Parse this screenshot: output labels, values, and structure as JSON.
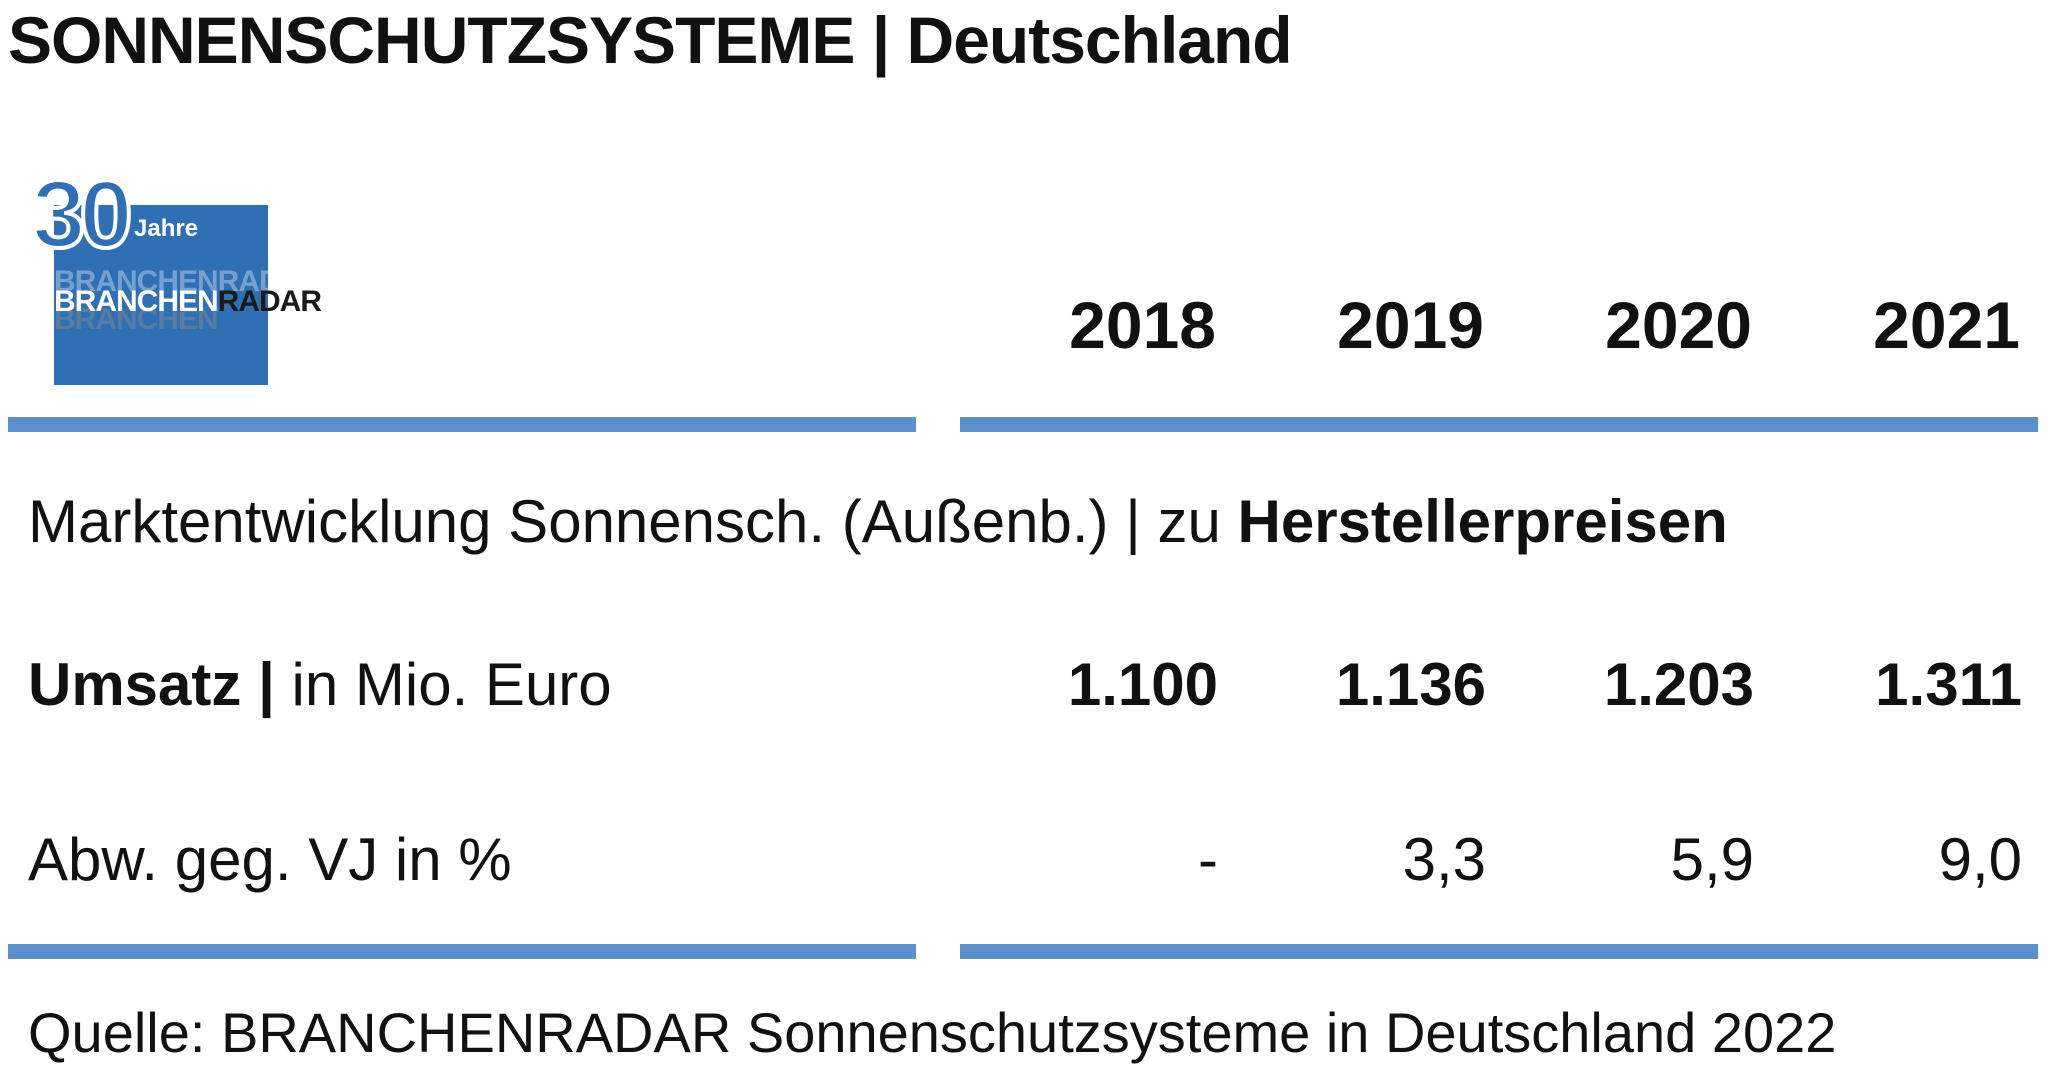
{
  "title": "SONNENSCHUTZSYSTEME | Deutschland",
  "logo": {
    "number": "30",
    "jahre": "Jahre",
    "brand_part1": "BRANCHEN",
    "brand_part2": "RADAR"
  },
  "subtitle": {
    "prefix": "Marktentwicklung Sonnensch. (Außenb.) | zu ",
    "emphasis": "Herstellerpreisen"
  },
  "rows": {
    "umsatz": {
      "label_bold": "Umsatz |",
      "label_rest": " in Mio. Euro"
    },
    "abw": {
      "label": "Abw. geg. VJ in %"
    }
  },
  "source": "Quelle: BRANCHENRADAR Sonnenschutzsysteme in Deutschland 2022",
  "colors": {
    "rule": "#5b8fd0",
    "logo_blue": "#2f6fb3"
  },
  "chart_data": {
    "type": "table",
    "title": "SONNENSCHUTZSYSTEME | Deutschland",
    "columns": [
      "2018",
      "2019",
      "2020",
      "2021"
    ],
    "rows": [
      {
        "name": "Umsatz | in Mio. Euro",
        "values": [
          "1.100",
          "1.136",
          "1.203",
          "1.311"
        ],
        "numeric": [
          1100,
          1136,
          1203,
          1311
        ]
      },
      {
        "name": "Abw. geg. VJ in %",
        "values": [
          "-",
          "3,3",
          "5,9",
          "9,0"
        ],
        "numeric": [
          null,
          3.3,
          5.9,
          9.0
        ]
      }
    ]
  }
}
